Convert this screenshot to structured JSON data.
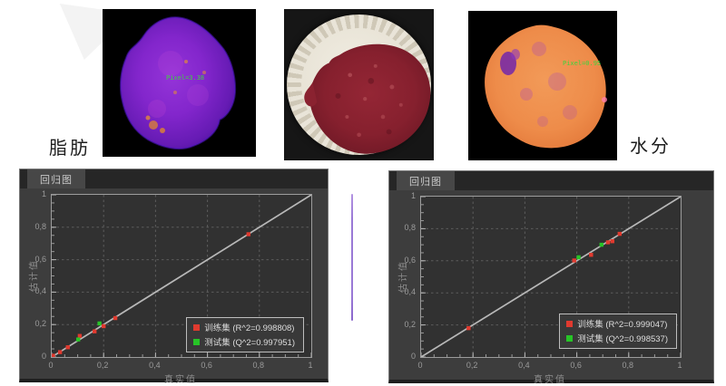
{
  "top_row": {
    "fat_label": "脂肪",
    "moisture_label": "水分",
    "fat_map_annotation": "Pixel=3.38",
    "moisture_map_annotation": "Pixel=0.95"
  },
  "panels": [
    {
      "tab_label": "回归图"
    },
    {
      "tab_label": "回归图"
    }
  ],
  "colors": {
    "train_red": "#e03a2f",
    "test_green": "#27c427",
    "panel_bg": "#3d3d3d",
    "plot_bg": "#313131",
    "divider_purple": "#9a79d6",
    "annotation_green": "#3ed43e"
  },
  "chart_data": [
    {
      "type": "scatter",
      "title": "回归图",
      "xlabel": "真实值",
      "ylabel": "估计值",
      "xlim": [
        0,
        1
      ],
      "ylim": [
        0,
        1
      ],
      "grid": true,
      "identity_line": true,
      "legend_position": "lower right",
      "tick_values": [
        0,
        0.2,
        0.4,
        0.6,
        0.8,
        1
      ],
      "xtick_labels": [
        "0",
        "0,2",
        "0,4",
        "0,6",
        "0,8",
        "1"
      ],
      "ytick_labels": [
        "0",
        "0,2",
        "0,4",
        "0,6",
        "0,8",
        "1"
      ],
      "series": [
        {
          "name": "训练集 (R^2=0.998808)",
          "r2": 0.998808,
          "color": "#e03a2f",
          "marker": "square",
          "points": [
            [
              0.005,
              0.008
            ],
            [
              0.032,
              0.03
            ],
            [
              0.062,
              0.06
            ],
            [
              0.108,
              0.13
            ],
            [
              0.165,
              0.158
            ],
            [
              0.2,
              0.19
            ],
            [
              0.245,
              0.24
            ],
            [
              0.758,
              0.757
            ]
          ]
        },
        {
          "name": "测试集 (Q^2=0.997951)",
          "q2": 0.997951,
          "color": "#27c427",
          "marker": "square",
          "points": [
            [
              0.102,
              0.108
            ],
            [
              0.184,
              0.207
            ]
          ]
        }
      ]
    },
    {
      "type": "scatter",
      "title": "回归图",
      "xlabel": "真实值",
      "ylabel": "估计值",
      "xlim": [
        0,
        1
      ],
      "ylim": [
        0,
        1
      ],
      "grid": true,
      "identity_line": true,
      "legend_position": "lower right",
      "tick_values": [
        0,
        0.2,
        0.4,
        0.6,
        0.8,
        1
      ],
      "xtick_labels": [
        "0",
        "0,2",
        "0,4",
        "0,6",
        "0,8",
        "1"
      ],
      "ytick_labels": [
        "0",
        "0,2",
        "0,4",
        "0,6",
        "0,8",
        "1"
      ],
      "series": [
        {
          "name": "训练集 (R^2=0.999047)",
          "r2": 0.999047,
          "color": "#e03a2f",
          "marker": "square",
          "points": [
            [
              0.183,
              0.18
            ],
            [
              0.59,
              0.602
            ],
            [
              0.655,
              0.637
            ],
            [
              0.72,
              0.715
            ],
            [
              0.737,
              0.722
            ],
            [
              0.765,
              0.768
            ]
          ]
        },
        {
          "name": "测试集 (Q^2=0.998537)",
          "q2": 0.998537,
          "color": "#27c427",
          "marker": "square",
          "points": [
            [
              0.607,
              0.622
            ],
            [
              0.695,
              0.7
            ]
          ]
        }
      ]
    }
  ]
}
